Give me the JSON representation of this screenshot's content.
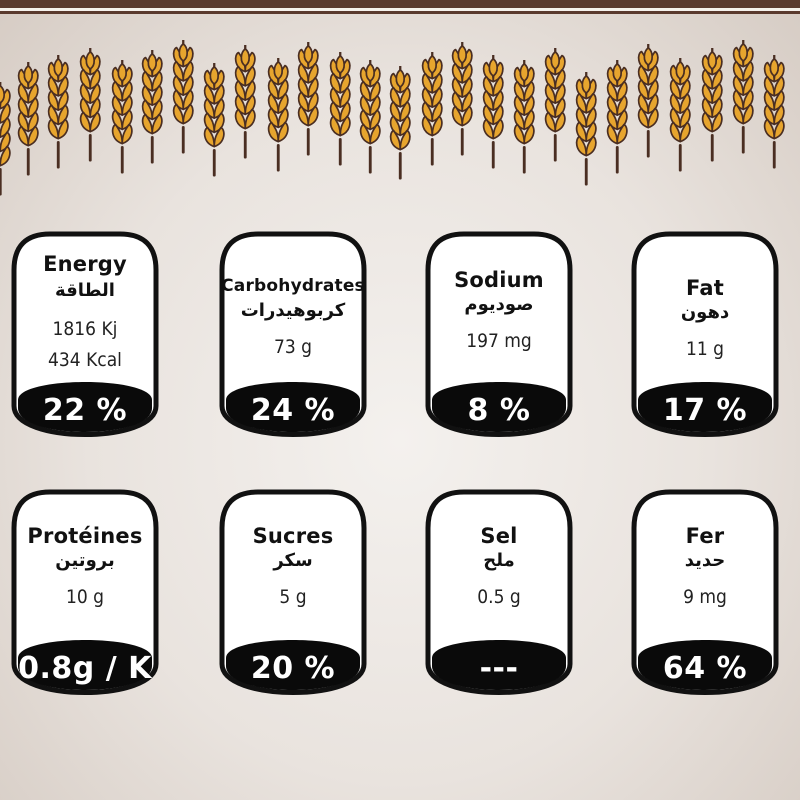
{
  "nutrients": [
    {
      "name": "Energy",
      "name_ar": "الطاقة",
      "amount_lines": [
        "1816 Kj",
        "434 Kcal"
      ],
      "percent": "22 %"
    },
    {
      "name": "Carbohydrates",
      "name_ar": "كربوهيدرات",
      "amount_lines": [
        "73 g"
      ],
      "percent": "24 %"
    },
    {
      "name": "Sodium",
      "name_ar": "صوديوم",
      "amount_lines": [
        "197 mg"
      ],
      "percent": "8 %"
    },
    {
      "name": "Fat",
      "name_ar": "دهون",
      "amount_lines": [
        "11 g"
      ],
      "percent": "17 %"
    },
    {
      "name": "Protéines",
      "name_ar": "بروتين",
      "amount_lines": [
        "10 g"
      ],
      "percent": "0.8g / K"
    },
    {
      "name": "Sucres",
      "name_ar": "سكر",
      "amount_lines": [
        "5 g"
      ],
      "percent": "20 %"
    },
    {
      "name": "Sel",
      "name_ar": "ملح",
      "amount_lines": [
        "0.5 g"
      ],
      "percent": "---"
    },
    {
      "name": "Fer",
      "name_ar": "حديد",
      "amount_lines": [
        "9 mg"
      ],
      "percent": "64 %"
    }
  ],
  "colors": {
    "top_band": "#5a3a2e",
    "wheat_gold": "#e7a52e",
    "wheat_outline": "#4a2e22",
    "badge_fill": "#ffffff",
    "badge_outline": "#111111",
    "percent_band": "#0a0a0a"
  },
  "decoration": {
    "icon": "wheat-ear-icon"
  }
}
